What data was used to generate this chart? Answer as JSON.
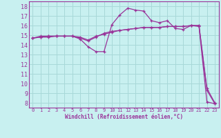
{
  "xlabel": "Windchill (Refroidissement éolien,°C)",
  "xlim": [
    -0.5,
    23.5
  ],
  "ylim": [
    7.5,
    18.5
  ],
  "xticks": [
    0,
    1,
    2,
    3,
    4,
    5,
    6,
    7,
    8,
    9,
    10,
    11,
    12,
    13,
    14,
    15,
    16,
    17,
    18,
    19,
    20,
    21,
    22,
    23
  ],
  "yticks": [
    8,
    9,
    10,
    11,
    12,
    13,
    14,
    15,
    16,
    17,
    18
  ],
  "bg_color": "#c8f0f0",
  "grid_color": "#a8d8d8",
  "line_color": "#993399",
  "line1_x": [
    0,
    1,
    2,
    3,
    4,
    5,
    6,
    7,
    8,
    9,
    10,
    11,
    12,
    13,
    14,
    15,
    16,
    17,
    18,
    19,
    20,
    21,
    22,
    23
  ],
  "line1_y": [
    14.7,
    14.9,
    14.9,
    14.9,
    14.9,
    14.9,
    14.6,
    13.8,
    13.3,
    13.3,
    16.1,
    17.1,
    17.8,
    17.6,
    17.5,
    16.5,
    16.3,
    16.5,
    15.7,
    15.6,
    16.0,
    15.9,
    8.1,
    7.9
  ],
  "line2_x": [
    0,
    1,
    2,
    3,
    4,
    5,
    6,
    7,
    8,
    9,
    10,
    11,
    12,
    13,
    14,
    15,
    16,
    17,
    18,
    19,
    20,
    21,
    22,
    23
  ],
  "line2_y": [
    14.7,
    14.8,
    14.8,
    14.9,
    14.9,
    14.9,
    14.7,
    14.4,
    14.8,
    15.2,
    15.4,
    15.5,
    15.6,
    15.7,
    15.8,
    15.8,
    15.8,
    15.9,
    15.9,
    15.9,
    16.0,
    16.0,
    9.3,
    7.9
  ],
  "line3_x": [
    0,
    1,
    2,
    3,
    4,
    5,
    6,
    7,
    8,
    9,
    10,
    11,
    12,
    13,
    14,
    15,
    16,
    17,
    18,
    19,
    20,
    21,
    22,
    23
  ],
  "line3_y": [
    14.7,
    14.8,
    14.9,
    14.9,
    14.9,
    14.9,
    14.8,
    14.5,
    14.9,
    15.1,
    15.3,
    15.5,
    15.6,
    15.7,
    15.8,
    15.8,
    15.8,
    15.9,
    15.9,
    15.9,
    16.0,
    16.0,
    9.5,
    8.0
  ]
}
